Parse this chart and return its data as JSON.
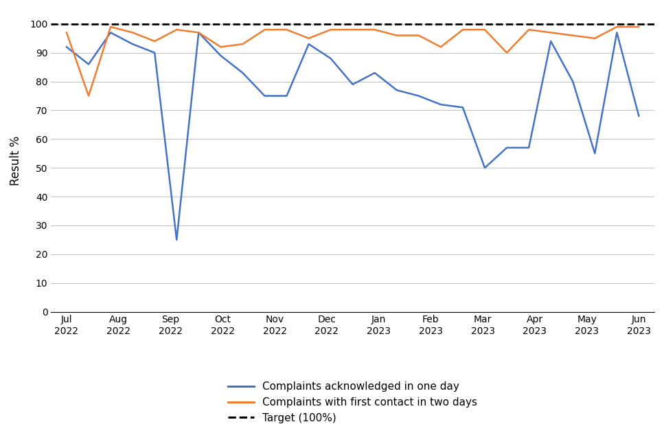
{
  "months": [
    "Jul\n2022",
    "Aug\n2022",
    "Sep\n2022",
    "Oct\n2022",
    "Nov\n2022",
    "Dec\n2022",
    "Jan\n2023",
    "Feb\n2023",
    "Mar\n2023",
    "Apr\n2023",
    "May\n2023",
    "Jun\n2023"
  ],
  "n_months": 12,
  "acknowledged": [
    92,
    86,
    97,
    93,
    90,
    25,
    97,
    89,
    83,
    75,
    75,
    93,
    88,
    79,
    83,
    77,
    75,
    72,
    71,
    50,
    57,
    57,
    94,
    80,
    55,
    97,
    68
  ],
  "first_contact": [
    97,
    75,
    99,
    97,
    94,
    98,
    97,
    92,
    93,
    98,
    98,
    95,
    98,
    98,
    98,
    96,
    96,
    92,
    98,
    98,
    90,
    98,
    97,
    96,
    95,
    99,
    99
  ],
  "blue_color": "#4472C4",
  "orange_color": "#ED7D31",
  "target_color": "#000000",
  "ylabel": "Result %",
  "ylim": [
    0,
    105
  ],
  "yticks": [
    0,
    10,
    20,
    30,
    40,
    50,
    60,
    70,
    80,
    90,
    100
  ],
  "legend_acknowledged": "Complaints acknowledged in one day",
  "legend_first_contact": "Complaints with first contact in two days",
  "legend_target": "Target (100%)",
  "background_color": "#ffffff",
  "grid_color": "#bfbfbf"
}
